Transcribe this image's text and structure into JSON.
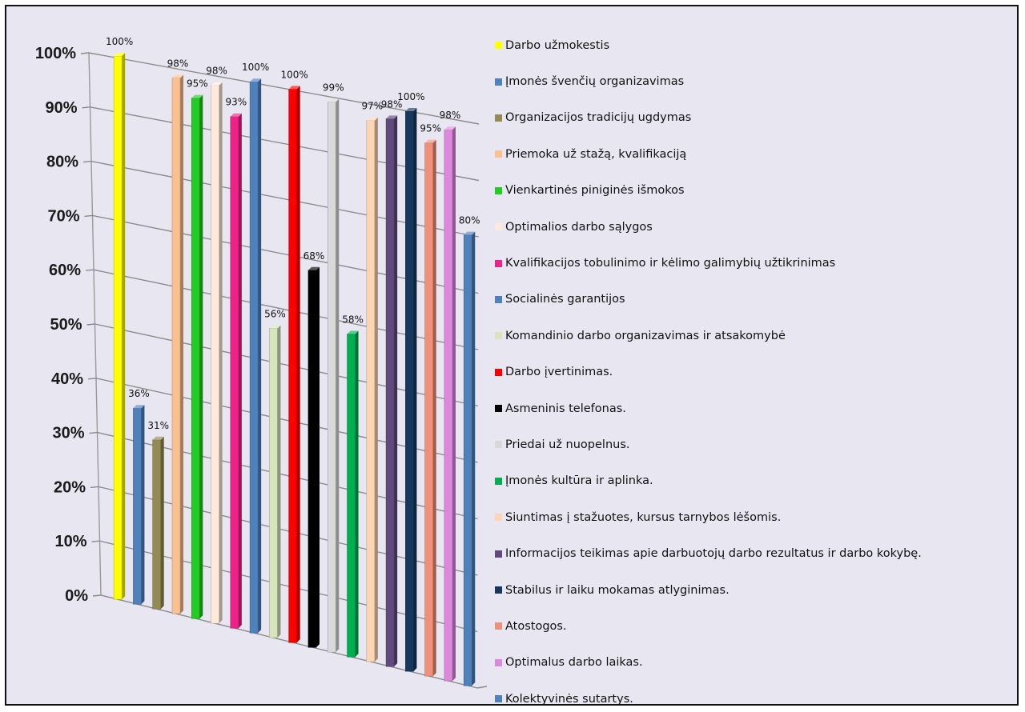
{
  "chart_data": {
    "type": "bar",
    "yticks": [
      "0%",
      "10%",
      "20%",
      "30%",
      "40%",
      "50%",
      "60%",
      "70%",
      "80%",
      "90%",
      "100%"
    ],
    "ylim": [
      0,
      100
    ],
    "grid": true,
    "legend_position": "right",
    "series": [
      {
        "name": "Darbo užmokestis",
        "value": 100,
        "label": "100%",
        "color": "#ffff00"
      },
      {
        "name": "Įmonės švenčių organizavimas",
        "value": 36,
        "label": "36%",
        "color": "#4f81bd"
      },
      {
        "name": "Organizacijos tradicijų ugdymas",
        "value": 31,
        "label": "31%",
        "color": "#948a54"
      },
      {
        "name": "Priemoka už stažą, kvalifikaciją",
        "value": 98,
        "label": "98%",
        "color": "#fac090"
      },
      {
        "name": "Vienkartinės piniginės išmokos",
        "value": 95,
        "label": "95%",
        "color": "#22cc22"
      },
      {
        "name": "Optimalios darbo sąlygos",
        "value": 98,
        "label": "98%",
        "color": "#fdeada"
      },
      {
        "name": "Kvalifikacijos tobulinimo ir kėlimo galimybių užtikrinimas",
        "value": 93,
        "label": "93%",
        "color": "#ee2288"
      },
      {
        "name": "Socialinės garantijos",
        "value": 100,
        "label": "100%",
        "color": "#4f81bd"
      },
      {
        "name": "Komandinio darbo organizavimas ir atsakomybė",
        "value": 56,
        "label": "56%",
        "color": "#d7e4bc"
      },
      {
        "name": "Darbo įvertinimas.",
        "value": 100,
        "label": "100%",
        "color": "#ff0000"
      },
      {
        "name": "Asmeninis telefonas.",
        "value": 68,
        "label": "68%",
        "color": "#000000"
      },
      {
        "name": "Priedai už nuopelnus.",
        "value": 99,
        "label": "99%",
        "color": "#d9d9d9"
      },
      {
        "name": "Įmonės kultūra ir aplinka.",
        "value": 58,
        "label": "58%",
        "color": "#00b050"
      },
      {
        "name": "Siuntimas į stažuotes, kursus tarnybos lėšomis.",
        "value": 97,
        "label": "97%",
        "color": "#fcd5b4"
      },
      {
        "name": "Informacijos teikimas apie darbuotojų darbo rezultatus ir darbo kokybę.",
        "value": 98,
        "label": "98%",
        "color": "#604a7b"
      },
      {
        "name": "Stabilus ir laiku mokamas atlyginimas.",
        "value": 100,
        "label": "100%",
        "color": "#17375e"
      },
      {
        "name": "Atostogos.",
        "value": 95,
        "label": "95%",
        "color": "#f0907a"
      },
      {
        "name": "Optimalus darbo laikas.",
        "value": 98,
        "label": "98%",
        "color": "#dd88dd"
      },
      {
        "name": "Kolektyvinės sutartys.",
        "value": 80,
        "label": "80%",
        "color": "#4f81bd"
      }
    ]
  }
}
